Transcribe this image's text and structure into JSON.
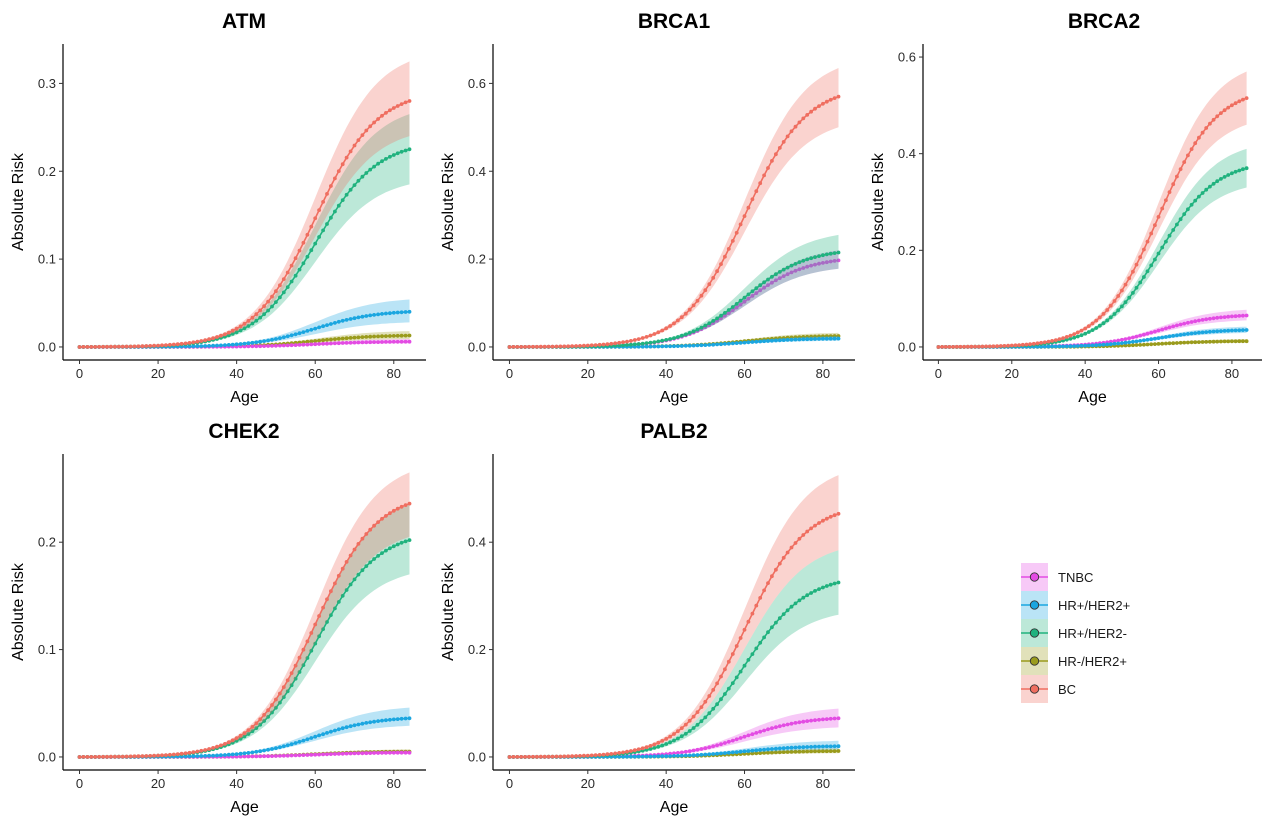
{
  "colors": {
    "TNBC": "#E34CE3",
    "HR+/HER2+": "#1BA6E0",
    "HR+/HER2-": "#20B27E",
    "HR-/HER2+": "#9A9B1C",
    "BC": "#EF6E60"
  },
  "legend": {
    "position": "right",
    "entries": [
      "TNBC",
      "HR+/HER2+",
      "HR+/HER2-",
      "HR-/HER2+",
      "BC"
    ]
  },
  "chart_data": [
    {
      "type": "line",
      "title": "ATM",
      "xlabel": "Age",
      "ylabel": "Absolute Risk",
      "xlim": [
        0,
        84
      ],
      "ylim": [
        0,
        0.33
      ],
      "xticks": [
        0,
        20,
        40,
        60,
        80
      ],
      "xtick_labels": [
        "0",
        "20",
        "40",
        "60",
        "80"
      ],
      "yticks": [
        0,
        0.1,
        0.2,
        0.3
      ],
      "ytick_labels": [
        "0.0",
        "0.1",
        "0.2",
        "0.3"
      ],
      "grid": false,
      "series": [
        {
          "name": "TNBC",
          "final": 0.006,
          "ci": [
            0.004,
            0.009
          ]
        },
        {
          "name": "HR+/HER2+",
          "final": 0.04,
          "ci": [
            0.028,
            0.054
          ]
        },
        {
          "name": "HR+/HER2-",
          "final": 0.225,
          "ci": [
            0.185,
            0.265
          ]
        },
        {
          "name": "HR-/HER2+",
          "final": 0.013,
          "ci": [
            0.009,
            0.018
          ]
        },
        {
          "name": "BC",
          "final": 0.28,
          "ci": [
            0.24,
            0.325
          ]
        }
      ]
    },
    {
      "type": "line",
      "title": "BRCA1",
      "xlabel": "Age",
      "ylabel": "Absolute Risk",
      "xlim": [
        0,
        84
      ],
      "ylim": [
        0,
        0.66
      ],
      "xticks": [
        0,
        20,
        40,
        60,
        80
      ],
      "xtick_labels": [
        "0",
        "20",
        "40",
        "60",
        "80"
      ],
      "yticks": [
        0,
        0.2,
        0.4,
        0.6
      ],
      "ytick_labels": [
        "0.0",
        "0.2",
        "0.4",
        "0.6"
      ],
      "grid": false,
      "series": [
        {
          "name": "TNBC",
          "final": 0.197,
          "ci": [
            0.178,
            0.22
          ]
        },
        {
          "name": "HR+/HER2+",
          "final": 0.019,
          "ci": [
            0.014,
            0.025
          ]
        },
        {
          "name": "HR+/HER2-",
          "final": 0.215,
          "ci": [
            0.178,
            0.255
          ]
        },
        {
          "name": "HR-/HER2+",
          "final": 0.025,
          "ci": [
            0.018,
            0.032
          ]
        },
        {
          "name": "BC",
          "final": 0.57,
          "ci": [
            0.5,
            0.635
          ]
        }
      ]
    },
    {
      "type": "line",
      "title": "BRCA2",
      "xlabel": "Age",
      "ylabel": "Absolute Risk",
      "xlim": [
        0,
        84
      ],
      "ylim": [
        0,
        0.6
      ],
      "xticks": [
        0,
        20,
        40,
        60,
        80
      ],
      "xtick_labels": [
        "0",
        "20",
        "40",
        "60",
        "80"
      ],
      "yticks": [
        0,
        0.2,
        0.4,
        0.6
      ],
      "ytick_labels": [
        "0.0",
        "0.2",
        "0.4",
        "0.6"
      ],
      "grid": false,
      "series": [
        {
          "name": "TNBC",
          "final": 0.065,
          "ci": [
            0.055,
            0.077
          ]
        },
        {
          "name": "HR+/HER2+",
          "final": 0.035,
          "ci": [
            0.029,
            0.042
          ]
        },
        {
          "name": "HR+/HER2-",
          "final": 0.37,
          "ci": [
            0.33,
            0.41
          ]
        },
        {
          "name": "HR-/HER2+",
          "final": 0.012,
          "ci": [
            0.009,
            0.016
          ]
        },
        {
          "name": "BC",
          "final": 0.515,
          "ci": [
            0.46,
            0.57
          ]
        }
      ]
    },
    {
      "type": "line",
      "title": "CHEK2",
      "xlabel": "Age",
      "ylabel": "Absolute Risk",
      "xlim": [
        0,
        84
      ],
      "ylim": [
        0,
        0.27
      ],
      "xticks": [
        0,
        20,
        40,
        60,
        80
      ],
      "xtick_labels": [
        "0",
        "20",
        "40",
        "60",
        "80"
      ],
      "yticks": [
        0,
        0.1,
        0.2
      ],
      "ytick_labels": [
        "0.0",
        "0.1",
        "0.2"
      ],
      "grid": false,
      "series": [
        {
          "name": "TNBC",
          "final": 0.004,
          "ci": [
            0.003,
            0.006
          ]
        },
        {
          "name": "HR+/HER2+",
          "final": 0.036,
          "ci": [
            0.029,
            0.046
          ]
        },
        {
          "name": "HR+/HER2-",
          "final": 0.202,
          "ci": [
            0.17,
            0.235
          ]
        },
        {
          "name": "HR-/HER2+",
          "final": 0.005,
          "ci": [
            0.003,
            0.007
          ]
        },
        {
          "name": "BC",
          "final": 0.236,
          "ci": [
            0.205,
            0.265
          ]
        }
      ]
    },
    {
      "type": "line",
      "title": "PALB2",
      "xlabel": "Age",
      "ylabel": "Absolute Risk",
      "xlim": [
        0,
        84
      ],
      "ylim": [
        0,
        0.54
      ],
      "xticks": [
        0,
        20,
        40,
        60,
        80
      ],
      "xtick_labels": [
        "0",
        "20",
        "40",
        "60",
        "80"
      ],
      "yticks": [
        0,
        0.2,
        0.4
      ],
      "ytick_labels": [
        "0.0",
        "0.2",
        "0.4"
      ],
      "grid": false,
      "series": [
        {
          "name": "TNBC",
          "final": 0.072,
          "ci": [
            0.055,
            0.09
          ]
        },
        {
          "name": "HR+/HER2+",
          "final": 0.02,
          "ci": [
            0.014,
            0.03
          ]
        },
        {
          "name": "HR+/HER2-",
          "final": 0.325,
          "ci": [
            0.265,
            0.385
          ]
        },
        {
          "name": "HR-/HER2+",
          "final": 0.011,
          "ci": [
            0.007,
            0.016
          ]
        },
        {
          "name": "BC",
          "final": 0.453,
          "ci": [
            0.385,
            0.525
          ]
        }
      ]
    }
  ]
}
